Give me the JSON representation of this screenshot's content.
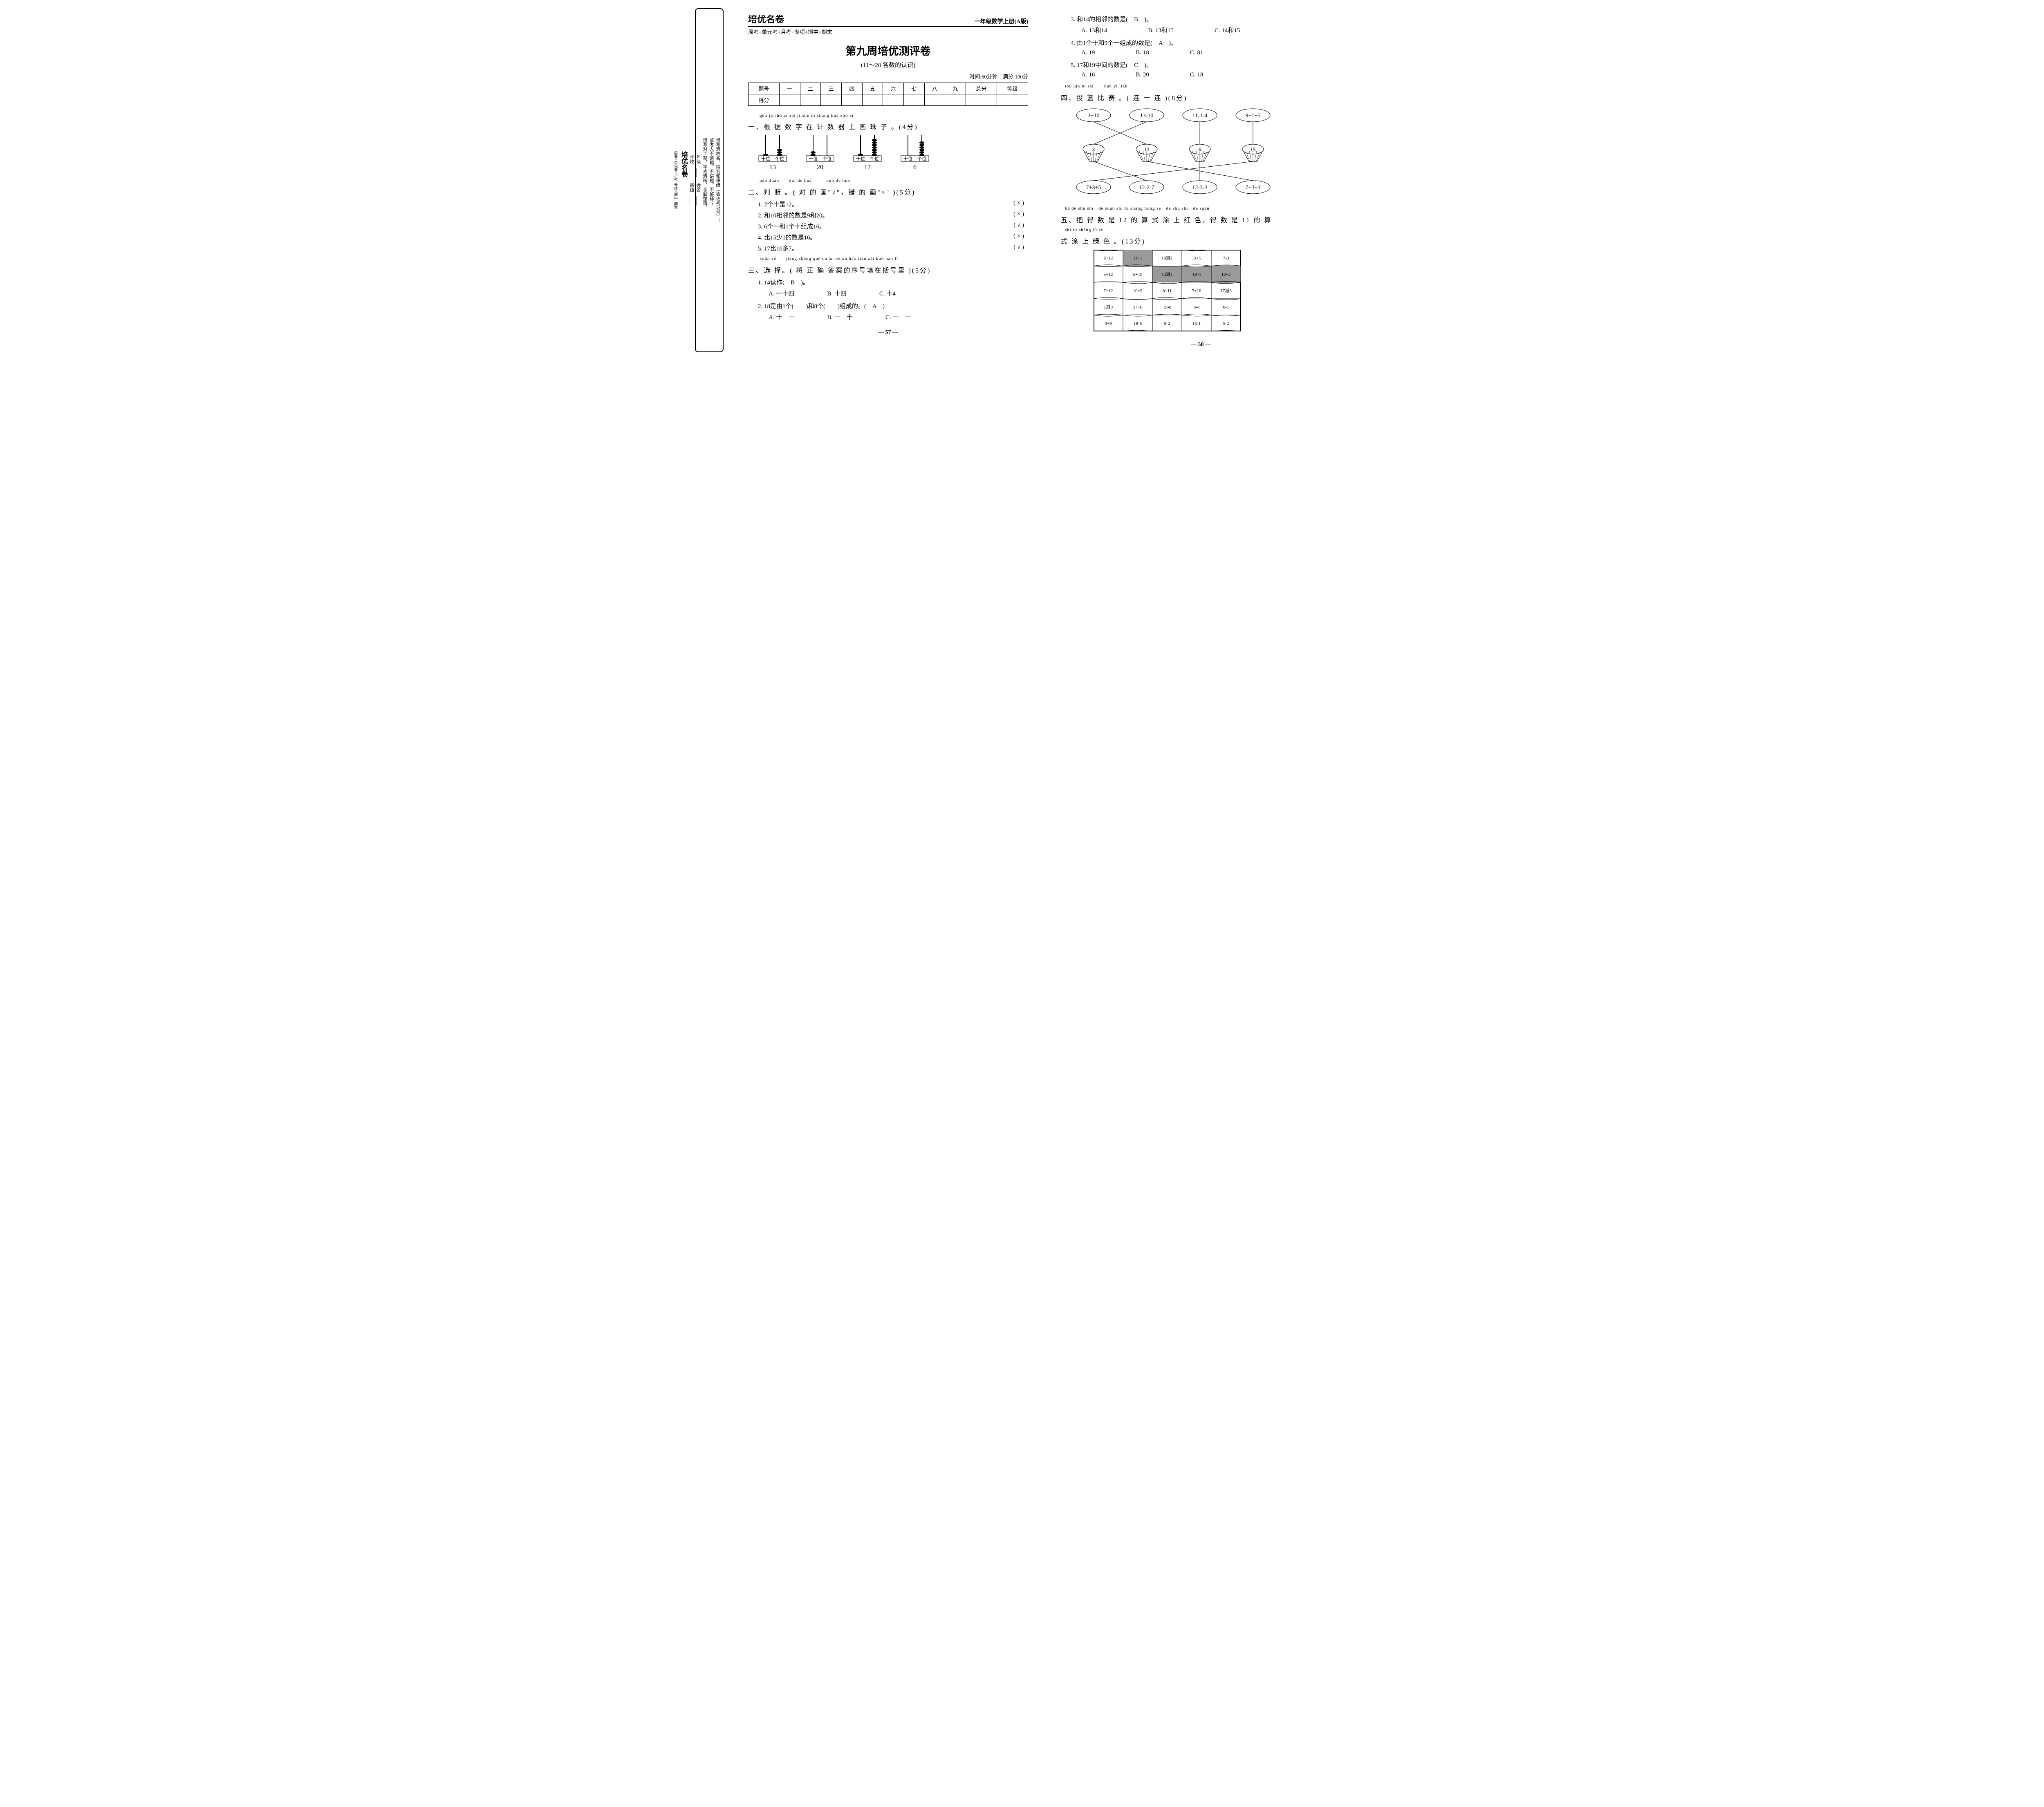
{
  "binding": {
    "top_lines": [
      "请写清校名、姓名和班级（表达考证号）：",
      "监考人不读题、不讲题、不解释；",
      "请写对工整，字迹清晰，卷面整洁。"
    ],
    "mid_labels": [
      "年级",
      "姓名"
    ],
    "mid_labels2": [
      "学校",
      "班级"
    ],
    "brand": "培优名卷",
    "brand_sub": "周考+单元考+月考+专项+期中+期末"
  },
  "header": {
    "brand": "培优名卷",
    "grade": "一年级数学上册(A版)",
    "sub": "周考+单元考+月考+专项+期中+期末"
  },
  "title": "第九周培优测评卷",
  "subtitle": "(11～20 各数的认识)",
  "timing": "时间:60分钟　满分:100分",
  "score_table": {
    "headers": [
      "题号",
      "一",
      "二",
      "三",
      "四",
      "五",
      "六",
      "七",
      "八",
      "九",
      "总分",
      "等级"
    ],
    "row_label": "得分"
  },
  "section1": {
    "pinyin": "gēn jù shù zì zài jì shù qì shàng huà zhū zi",
    "head": "一、根 据 数 字 在 计 数 器 上 画 珠 子 。(4分)",
    "items": [
      {
        "tens": "十位",
        "ones": "个位",
        "num": "13",
        "beads_t": 1,
        "beads_o": 3
      },
      {
        "tens": "十位",
        "ones": "个位",
        "num": "20",
        "beads_t": 2,
        "beads_o": 0
      },
      {
        "tens": "十位",
        "ones": "个位",
        "num": "17",
        "beads_t": 1,
        "beads_o": 7
      },
      {
        "tens": "十位",
        "ones": "个位",
        "num": "6",
        "beads_t": 0,
        "beads_o": 6
      }
    ]
  },
  "section2": {
    "pinyin": "pàn duàn　　duì de huà　　　cuò de huà",
    "head": "二、判 断 。( 对 的 画\"√\"，错 的 画\"×\" )(5分)",
    "items": [
      {
        "q": "1. 2个十是12。",
        "a": "( × )"
      },
      {
        "q": "2. 和10相邻的数是9和20。",
        "a": "( × )"
      },
      {
        "q": "3. 6个一和1个十组成16。",
        "a": "( √ )"
      },
      {
        "q": "4. 比15少1的数是16。",
        "a": "( × )"
      },
      {
        "q": "5. 17比10多7。",
        "a": "( √ )"
      }
    ]
  },
  "section3": {
    "pinyin": "xuǎn zé　　jiāng zhèng què dá àn de xù hào tián zài kuò hào lǐ",
    "head": "三、选 择。( 将 正 确 答案的序号填在括号里 )(5分)",
    "q1": {
      "text": "1. 14读作(　B　)。",
      "a": "A. 一十四",
      "b": "B. 十四",
      "c": "C. 十4"
    },
    "q2": {
      "text": "2. 18是由1个(　　)和8个(　　)组成的。(　A　)",
      "a": "A. 十　一",
      "b": "B. 一　十",
      "c": "C. 一　一"
    },
    "q3": {
      "text": "3. 和14的相邻的数是(　B　)。",
      "a": "A. 13和14",
      "b": "B. 13和15",
      "c": "C. 14和15"
    },
    "q4": {
      "text": "4. 由1个十和9个一组成的数是(　A　)。",
      "a": "A. 19",
      "b": "B. 18",
      "c": "C. 81"
    },
    "q5": {
      "text": "5. 17和19中间的数是(　C　)。",
      "a": "A. 16",
      "b": "B. 20",
      "c": "C. 18"
    }
  },
  "section4": {
    "pinyin": "tóu lán bǐ sài　　lián yi lián",
    "head": "四、投 篮 比 赛 。( 连 一 连 )(8分)",
    "top": [
      "3+10",
      "13-10",
      "11-1-4",
      "9+1+5"
    ],
    "baskets": [
      "3",
      "13",
      "6",
      "15"
    ],
    "bottom": [
      "7+3+5",
      "12-2-7",
      "12-3-3",
      "7+3+3"
    ],
    "edges_top": [
      [
        0,
        1
      ],
      [
        1,
        0
      ],
      [
        2,
        2
      ],
      [
        3,
        3
      ]
    ],
    "edges_bottom": [
      [
        0,
        3
      ],
      [
        1,
        0
      ],
      [
        2,
        2
      ],
      [
        3,
        1
      ]
    ]
  },
  "section5": {
    "pinyin1": "bǎ dé shù shì　de suàn shì tú shàng hóng sè　dé shù shì　de suàn",
    "head1": "五、把 得 数 是 12 的 算 式 涂 上 红 色，得 数 是 11 的 算",
    "pinyin2": "shì tú shàng lǜ sè",
    "head2": "式 涂 上 绿 色 。(13分)",
    "cells": [
      "6+12",
      "11+1",
      "10减1",
      "14+5",
      "7-3",
      "5+12",
      "5+10",
      "13减1",
      "18-6",
      "10+2",
      "7+12",
      "10+9",
      "8+11",
      "7+10",
      "17减6",
      "1减0",
      "3+10",
      "19-6",
      "8-4",
      "6-1",
      "0+9",
      "18-8",
      "8-2",
      "15-1",
      "5-2"
    ]
  },
  "pagenum_left": "— 57 —",
  "pagenum_right": "— 58 —",
  "colors": {
    "black": "#000000",
    "shade": "#9a9a9a"
  }
}
